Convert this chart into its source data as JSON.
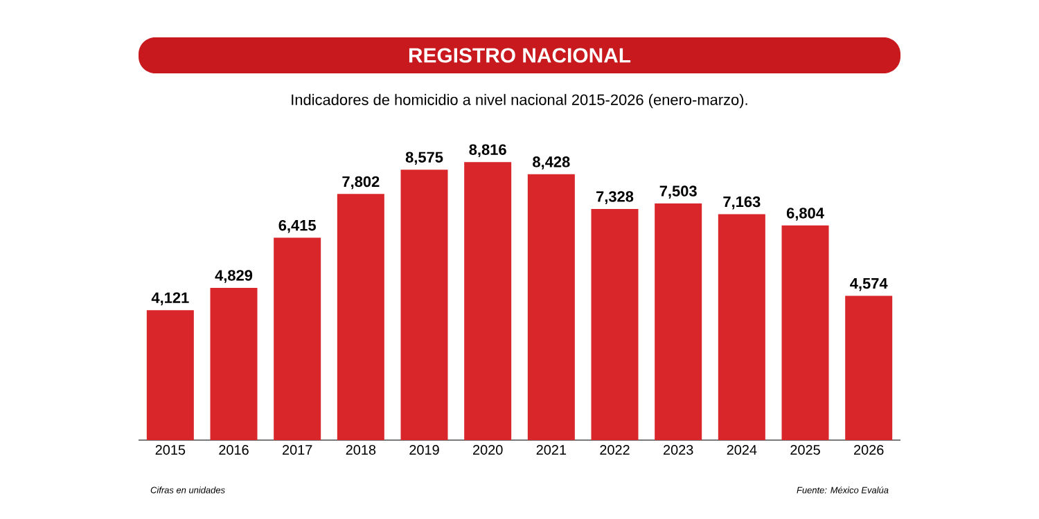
{
  "chart_data": {
    "type": "bar",
    "title": "REGISTRO NACIONAL",
    "subtitle": "Indicadores de homicidio a nivel nacional 2015-2026 (enero-marzo).",
    "categories": [
      "2015",
      "2016",
      "2017",
      "2018",
      "2019",
      "2020",
      "2021",
      "2022",
      "2023",
      "2024",
      "2025",
      "2026"
    ],
    "values": [
      4121,
      4829,
      6415,
      7802,
      8575,
      8816,
      8428,
      7328,
      7503,
      7163,
      6804,
      4574
    ],
    "value_labels": [
      "4,121",
      "4,829",
      "6,415",
      "7,802",
      "8,575",
      "8,816",
      "8,428",
      "7,328",
      "7,503",
      "7,163",
      "6,804",
      "4,574"
    ],
    "color": "#d9262b",
    "annotations": [
      "Cifras en unidades",
      "Fuente: México Evalúa"
    ]
  }
}
